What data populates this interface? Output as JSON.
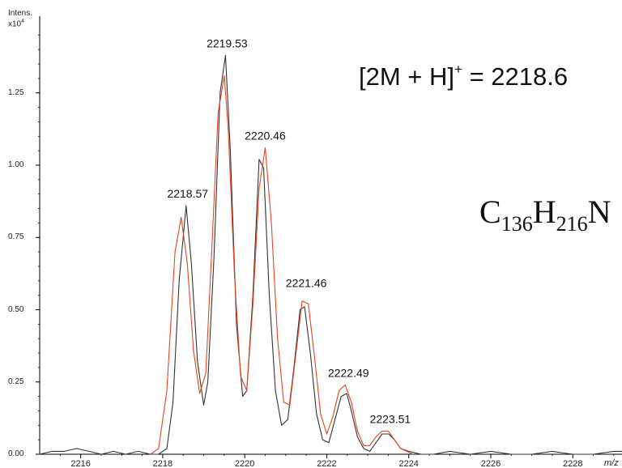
{
  "y_axis": {
    "title": "Intens.",
    "multiplier": "x10",
    "multiplier_exp": "4"
  },
  "annotation": {
    "prefix": "[2M + H]",
    "charge": "+",
    "suffix": " = 2218.6"
  },
  "formula": {
    "c": "C",
    "c_n": "136",
    "h": "H",
    "h_n": "216",
    "next": "N"
  },
  "x_unit": "m/z",
  "colors": {
    "experimental": "#333333",
    "theoretical": "#e8431c",
    "axis": "#000000"
  },
  "chart_data": {
    "type": "line",
    "xlim": [
      2215,
      2229.2
    ],
    "ylim": [
      0,
      1.5
    ],
    "x_ticks": [
      2216,
      2218,
      2220,
      2222,
      2224,
      2226,
      2228
    ],
    "y_ticks": [
      {
        "value": 0.0,
        "label": "0.00"
      },
      {
        "value": 0.25,
        "label": "0.25"
      },
      {
        "value": 0.5,
        "label": "0.50"
      },
      {
        "value": 0.75,
        "label": "0.75"
      },
      {
        "value": 1.0,
        "label": "1.00"
      },
      {
        "value": 1.25,
        "label": "1.25"
      }
    ],
    "peak_labels": [
      {
        "x": 2218.57,
        "y": 0.86,
        "label": "2218.57"
      },
      {
        "x": 2219.53,
        "y": 1.38,
        "label": "2219.53"
      },
      {
        "x": 2220.46,
        "y": 1.06,
        "label": "2220.46"
      },
      {
        "x": 2221.46,
        "y": 0.55,
        "label": "2221.46"
      },
      {
        "x": 2222.49,
        "y": 0.24,
        "label": "2222.49"
      },
      {
        "x": 2223.51,
        "y": 0.08,
        "label": "2223.51"
      }
    ],
    "series": [
      {
        "color": "#333333",
        "x": [
          2215.0,
          2215.3,
          2215.6,
          2215.9,
          2216.2,
          2216.5,
          2216.8,
          2217.1,
          2217.4,
          2217.7,
          2217.9,
          2218.1,
          2218.25,
          2218.4,
          2218.57,
          2218.7,
          2218.85,
          2219.0,
          2219.1,
          2219.25,
          2219.4,
          2219.53,
          2219.65,
          2219.8,
          2219.95,
          2220.05,
          2220.2,
          2220.35,
          2220.46,
          2220.6,
          2220.75,
          2220.9,
          2221.05,
          2221.2,
          2221.35,
          2221.46,
          2221.6,
          2221.75,
          2221.9,
          2222.05,
          2222.2,
          2222.35,
          2222.49,
          2222.6,
          2222.75,
          2222.9,
          2223.05,
          2223.2,
          2223.35,
          2223.51,
          2223.65,
          2223.8,
          2224.0,
          2224.3,
          2224.6,
          2225.0,
          2225.5,
          2226.0,
          2226.5,
          2227.0,
          2227.5,
          2228.0,
          2228.5,
          2229.0,
          2229.2
        ],
        "y": [
          0.0,
          0.01,
          0.01,
          0.02,
          0.01,
          0.0,
          0.01,
          0.0,
          0.01,
          0.0,
          0.0,
          0.02,
          0.18,
          0.6,
          0.86,
          0.66,
          0.32,
          0.17,
          0.25,
          0.68,
          1.25,
          1.38,
          1.05,
          0.45,
          0.2,
          0.22,
          0.55,
          1.02,
          0.99,
          0.55,
          0.22,
          0.1,
          0.12,
          0.3,
          0.5,
          0.51,
          0.35,
          0.14,
          0.05,
          0.04,
          0.12,
          0.2,
          0.21,
          0.15,
          0.06,
          0.02,
          0.01,
          0.04,
          0.07,
          0.07,
          0.05,
          0.02,
          0.01,
          0.0,
          0.0,
          0.01,
          0.0,
          0.01,
          0.0,
          0.0,
          0.01,
          0.0,
          0.0,
          0.01,
          0.01
        ]
      },
      {
        "color": "#e8431c",
        "x": [
          2217.7,
          2217.9,
          2218.1,
          2218.3,
          2218.45,
          2218.6,
          2218.75,
          2218.9,
          2219.05,
          2219.2,
          2219.35,
          2219.5,
          2219.6,
          2219.75,
          2219.9,
          2220.05,
          2220.2,
          2220.35,
          2220.5,
          2220.65,
          2220.8,
          2220.95,
          2221.1,
          2221.25,
          2221.4,
          2221.55,
          2221.7,
          2221.85,
          2222.0,
          2222.15,
          2222.3,
          2222.45,
          2222.6,
          2222.75,
          2222.9,
          2223.05,
          2223.2,
          2223.35,
          2223.5,
          2223.65,
          2223.8,
          2223.95,
          2224.1
        ],
        "y": [
          0.0,
          0.02,
          0.22,
          0.7,
          0.82,
          0.66,
          0.36,
          0.21,
          0.28,
          0.72,
          1.18,
          1.31,
          1.12,
          0.62,
          0.27,
          0.22,
          0.52,
          0.92,
          1.06,
          0.8,
          0.4,
          0.18,
          0.17,
          0.35,
          0.53,
          0.52,
          0.34,
          0.14,
          0.07,
          0.13,
          0.22,
          0.24,
          0.18,
          0.08,
          0.03,
          0.03,
          0.06,
          0.08,
          0.08,
          0.05,
          0.02,
          0.01,
          0.0
        ]
      }
    ]
  }
}
